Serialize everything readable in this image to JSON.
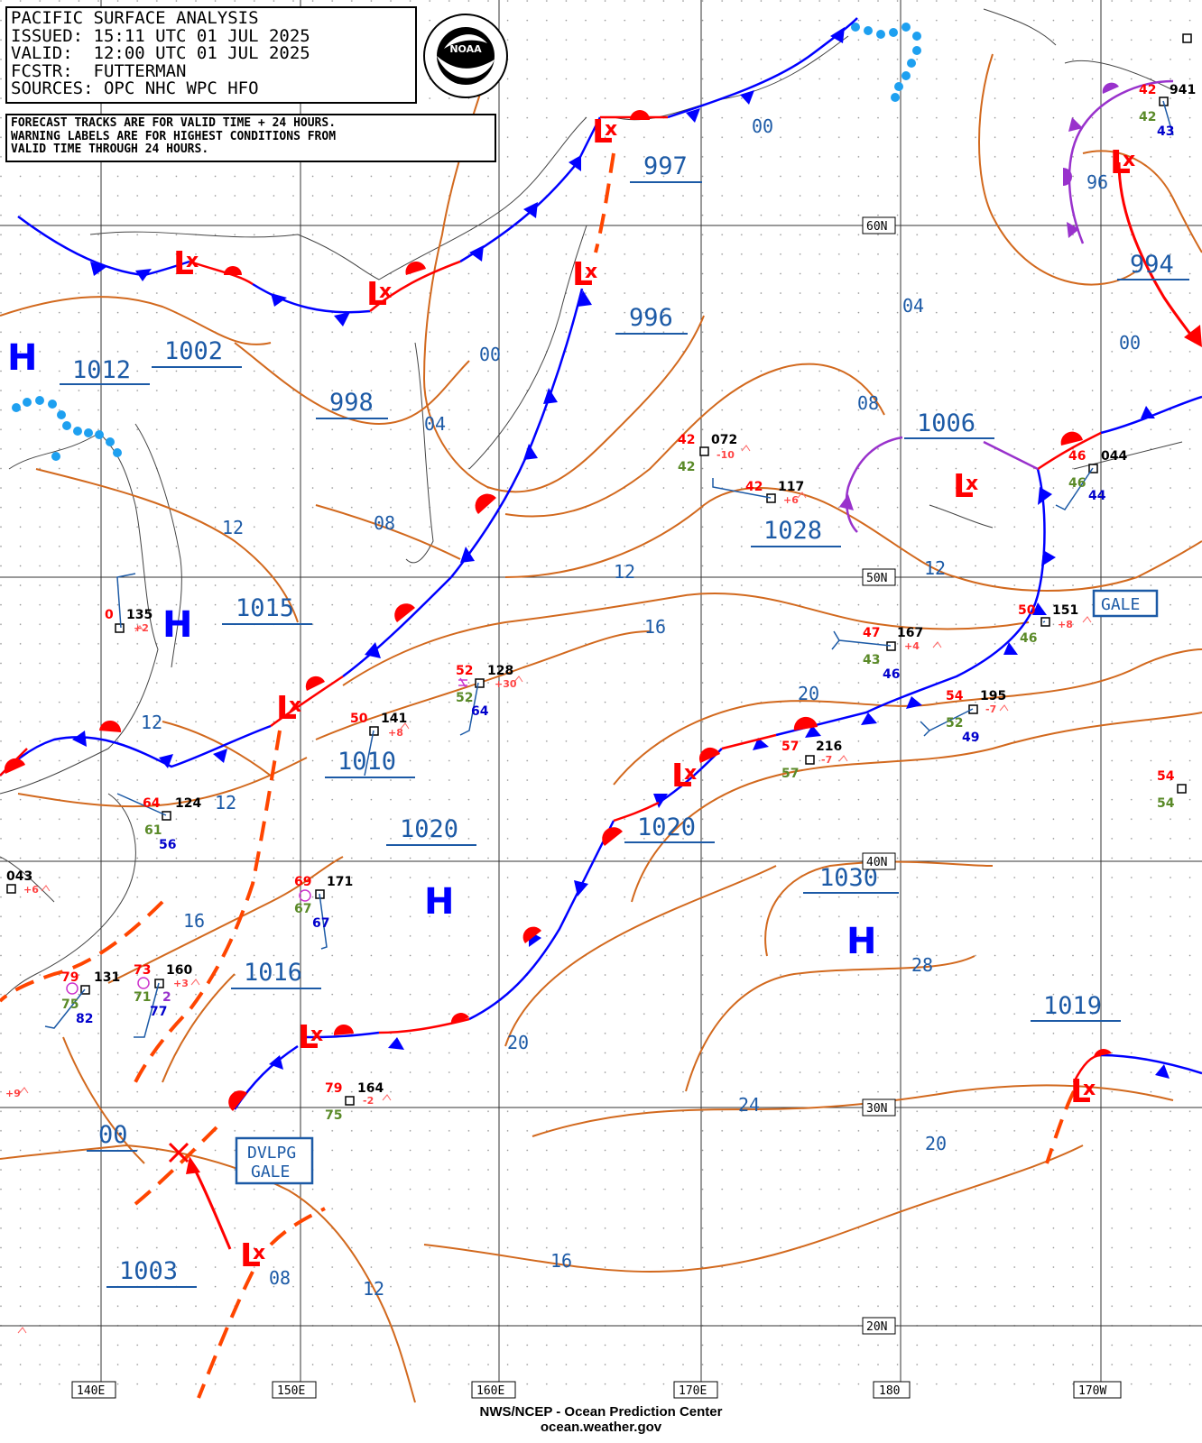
{
  "header": {
    "lines": [
      "PACIFIC SURFACE ANALYSIS",
      "ISSUED: 15:11 UTC 01 JUL 2025",
      "VALID:  12:00 UTC 01 JUL 2025",
      "FCSTR:  FUTTERMAN",
      "SOURCES: OPC NHC WPC HFO"
    ]
  },
  "note": {
    "lines": [
      "FORECAST TRACKS ARE FOR VALID TIME + 24 HOURS.",
      "WARNING LABELS ARE FOR HIGHEST CONDITIONS FROM",
      "VALID TIME THROUGH 24 HOURS."
    ]
  },
  "logo_text": "NOAA",
  "footer": {
    "line1": "NWS/NCEP - Ocean Prediction Center",
    "line2": "ocean.weather.gov"
  },
  "lon_labels": [
    "140E",
    "150E",
    "160E",
    "170E",
    "180",
    "170W"
  ],
  "lat_labels": [
    "60N",
    "50N",
    "40N",
    "30N",
    "20N"
  ],
  "isobar_labels": [
    "00",
    "04",
    "08",
    "12",
    "16",
    "20",
    "24",
    "28",
    "96"
  ],
  "pressure_centers": [
    {
      "type": "H",
      "value": "1012"
    },
    {
      "type": "L",
      "value": "1002"
    },
    {
      "type": "L",
      "value": "998"
    },
    {
      "type": "L",
      "value": "997"
    },
    {
      "type": "L",
      "value": "996"
    },
    {
      "type": "L",
      "value": "994"
    },
    {
      "type": "L",
      "value": "1006"
    },
    {
      "type": "L",
      "value": "1028"
    },
    {
      "type": "H",
      "value": "1015"
    },
    {
      "type": "L",
      "value": "1010"
    },
    {
      "type": "L",
      "value": "1020"
    },
    {
      "type": "L",
      "value": "1020"
    },
    {
      "type": "H",
      "value": "1030"
    },
    {
      "type": "L",
      "value": "1016"
    },
    {
      "type": "L",
      "value": "1019"
    },
    {
      "type": "L",
      "value": "1000"
    },
    {
      "type": "L",
      "value": "1003"
    }
  ],
  "center_values": [
    "1012",
    "1002",
    "998",
    "997",
    "996",
    "994",
    "1006",
    "1028",
    "1015",
    "1010",
    "1020",
    "1020",
    "1030",
    "1016",
    "1019",
    "00",
    "1003"
  ],
  "warnings": [
    "GALE",
    "DVLPG",
    "GALE"
  ],
  "station_obs": [
    "072",
    "117",
    "167",
    "195",
    "216",
    "151",
    "044",
    "941",
    "135",
    "141",
    "128",
    "124",
    "171",
    "160",
    "131",
    "043",
    "164"
  ],
  "colors": {
    "isobar": "#d2691e",
    "cold_front": "#0000ff",
    "warm_front": "#ff0000",
    "occluded": "#9932cc",
    "trough": "#ff4500",
    "ice": "#1ea0f0",
    "label": "#1c5aa6"
  }
}
